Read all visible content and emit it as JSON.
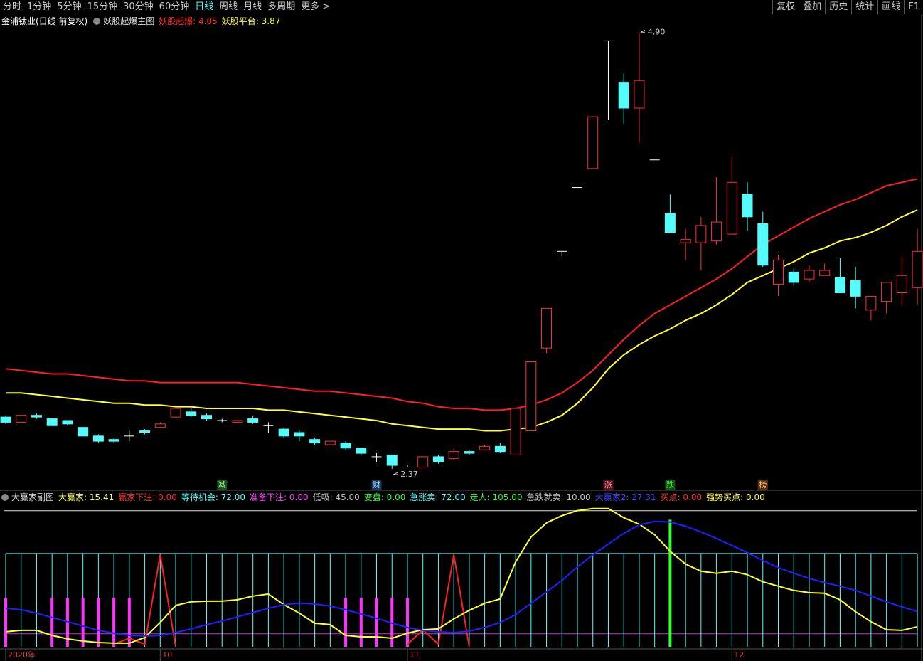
{
  "toolbar": {
    "periods": [
      "分时",
      "1分钟",
      "5分钟",
      "15分钟",
      "30分钟",
      "60分钟",
      "日线",
      "周线",
      "月线",
      "多周期",
      "更多 >"
    ],
    "active": "日线",
    "tools": [
      "复权",
      "叠加",
      "历史",
      "统计",
      "画线",
      "F1"
    ]
  },
  "chart_data": [
    {
      "type": "candlestick",
      "title": "金浦钛业(日线 前复权)",
      "subtitle": "妖股起爆主图",
      "legend": [
        {
          "text": "妖股起爆: 4.05",
          "color": "#ff2a2a"
        },
        {
          "text": "妖股平台: 3.87",
          "color": "#ffff33"
        }
      ],
      "ylim": [
        2.25,
        4.93
      ],
      "up_color": "#ff3232",
      "down_color": "#54fcfc",
      "open": [
        2.67,
        2.64,
        2.68,
        2.66,
        2.65,
        2.61,
        2.56,
        2.54,
        2.56,
        2.59,
        2.61,
        2.67,
        2.7,
        2.68,
        2.65,
        2.64,
        2.66,
        2.62,
        2.6,
        2.58,
        2.54,
        2.51,
        2.52,
        2.49,
        2.44,
        2.45,
        2.38,
        2.38,
        2.44,
        2.43,
        2.47,
        2.48,
        2.5,
        2.45,
        2.59,
        3.07,
        3.63,
        4.0,
        4.11,
        4.85,
        4.61,
        4.46,
        4.16,
        3.85,
        3.68,
        3.68,
        3.69,
        3.73,
        3.96,
        3.79,
        3.44,
        3.51,
        3.47,
        3.49,
        3.48,
        3.46,
        3.29,
        3.34,
        3.39,
        3.42
      ],
      "high": [
        2.68,
        2.68,
        2.69,
        2.66,
        2.65,
        2.61,
        2.57,
        2.55,
        2.59,
        2.6,
        2.64,
        2.72,
        2.72,
        2.69,
        2.66,
        2.65,
        2.68,
        2.64,
        2.61,
        2.59,
        2.55,
        2.53,
        2.53,
        2.49,
        2.46,
        2.45,
        2.39,
        2.44,
        2.45,
        2.49,
        2.48,
        2.51,
        2.52,
        2.72,
        2.99,
        3.3,
        3.63,
        4.0,
        4.41,
        4.85,
        4.66,
        4.9,
        4.16,
        3.96,
        3.76,
        3.83,
        4.06,
        4.18,
        4.03,
        3.86,
        3.61,
        3.53,
        3.55,
        3.56,
        3.59,
        3.54,
        3.37,
        3.45,
        3.6,
        3.76
      ],
      "low": [
        2.63,
        2.64,
        2.66,
        2.62,
        2.62,
        2.56,
        2.52,
        2.52,
        2.53,
        2.57,
        2.61,
        2.67,
        2.67,
        2.65,
        2.64,
        2.64,
        2.63,
        2.58,
        2.55,
        2.53,
        2.51,
        2.51,
        2.48,
        2.45,
        2.41,
        2.37,
        2.38,
        2.38,
        2.4,
        2.42,
        2.45,
        2.48,
        2.46,
        2.45,
        2.59,
        3.04,
        3.6,
        4.0,
        4.11,
        4.39,
        4.37,
        4.26,
        4.16,
        3.74,
        3.58,
        3.52,
        3.67,
        3.73,
        3.75,
        3.54,
        3.37,
        3.43,
        3.45,
        3.49,
        3.39,
        3.3,
        3.23,
        3.27,
        3.32,
        3.32
      ],
      "close": [
        2.64,
        2.68,
        2.67,
        2.62,
        2.63,
        2.56,
        2.53,
        2.53,
        2.56,
        2.58,
        2.63,
        2.72,
        2.68,
        2.66,
        2.65,
        2.65,
        2.64,
        2.62,
        2.56,
        2.56,
        2.52,
        2.53,
        2.49,
        2.46,
        2.44,
        2.39,
        2.38,
        2.44,
        2.41,
        2.47,
        2.46,
        2.5,
        2.47,
        2.72,
        2.99,
        3.3,
        3.63,
        4.0,
        4.41,
        4.85,
        4.46,
        4.62,
        4.16,
        3.74,
        3.7,
        3.78,
        3.8,
        4.03,
        3.83,
        3.55,
        3.58,
        3.45,
        3.52,
        3.52,
        3.39,
        3.37,
        3.37,
        3.45,
        3.49,
        3.63
      ],
      "series": [
        {
          "color": "#ff2020",
          "values": [
            2.95,
            2.94,
            2.93,
            2.92,
            2.92,
            2.91,
            2.9,
            2.89,
            2.88,
            2.88,
            2.87,
            2.87,
            2.87,
            2.87,
            2.87,
            2.87,
            2.86,
            2.85,
            2.84,
            2.83,
            2.82,
            2.82,
            2.81,
            2.8,
            2.79,
            2.78,
            2.76,
            2.75,
            2.73,
            2.72,
            2.72,
            2.71,
            2.71,
            2.72,
            2.74,
            2.77,
            2.81,
            2.87,
            2.94,
            3.03,
            3.12,
            3.2,
            3.27,
            3.32,
            3.37,
            3.42,
            3.47,
            3.53,
            3.6,
            3.67,
            3.72,
            3.77,
            3.82,
            3.86,
            3.9,
            3.93,
            3.97,
            4.01,
            4.03,
            4.05
          ]
        },
        {
          "color": "#ffff33",
          "values": [
            2.81,
            2.81,
            2.8,
            2.79,
            2.78,
            2.77,
            2.76,
            2.75,
            2.75,
            2.74,
            2.74,
            2.73,
            2.73,
            2.72,
            2.72,
            2.72,
            2.72,
            2.71,
            2.71,
            2.7,
            2.69,
            2.68,
            2.67,
            2.66,
            2.65,
            2.63,
            2.62,
            2.61,
            2.6,
            2.6,
            2.6,
            2.59,
            2.59,
            2.6,
            2.61,
            2.64,
            2.68,
            2.75,
            2.84,
            2.95,
            3.03,
            3.09,
            3.14,
            3.18,
            3.23,
            3.27,
            3.32,
            3.38,
            3.45,
            3.49,
            3.53,
            3.57,
            3.62,
            3.65,
            3.69,
            3.71,
            3.74,
            3.78,
            3.83,
            3.87
          ]
        }
      ],
      "annotations": [
        {
          "value": 4.9,
          "label": "4.90"
        },
        {
          "value": 2.37,
          "label": "2.37"
        }
      ],
      "signals": [
        null,
        null,
        null,
        null,
        null,
        null,
        null,
        null,
        null,
        null,
        null,
        null,
        null,
        null,
        "减",
        null,
        null,
        null,
        null,
        null,
        null,
        null,
        null,
        null,
        "财",
        null,
        null,
        null,
        null,
        null,
        null,
        null,
        null,
        null,
        null,
        null,
        null,
        null,
        null,
        "涨",
        null,
        null,
        null,
        "跌",
        null,
        null,
        null,
        null,
        null,
        "榜",
        null,
        null,
        null,
        null,
        null,
        null,
        null,
        null,
        null,
        null
      ]
    },
    {
      "type": "indicator",
      "title": "大赢家副图",
      "legend": [
        {
          "text": "大赢家: 15.41",
          "color": "#ffff66"
        },
        {
          "text": "赢家下注: 0.00",
          "color": "#ff3232"
        },
        {
          "text": "等待机会: 72.00",
          "color": "#54fcfc"
        },
        {
          "text": "准备下注: 0.00",
          "color": "#ff44ff"
        },
        {
          "text": "低吸: 45.00",
          "color": "#c0c0c0"
        },
        {
          "text": "变盘: 0.00",
          "color": "#33ff33"
        },
        {
          "text": "急涨卖: 72.00",
          "color": "#54fcfc"
        },
        {
          "text": "走人: 105.00",
          "color": "#33ff33"
        },
        {
          "text": "急跌就卖: 10.00",
          "color": "#c0c0c0"
        },
        {
          "text": "大赢家2: 27.31",
          "color": "#4040ff"
        },
        {
          "text": "买点: 0.00",
          "color": "#ff3232"
        },
        {
          "text": "强势买点: 0.00",
          "color": "#ffff33"
        }
      ],
      "ylim": [
        0,
        112
      ],
      "categories": [
        "2020年",
        null,
        null,
        null,
        null,
        null,
        null,
        null,
        null,
        null,
        "10",
        null,
        null,
        null,
        null,
        null,
        null,
        null,
        null,
        null,
        null,
        null,
        null,
        null,
        null,
        null,
        "11",
        null,
        null,
        null,
        null,
        null,
        null,
        null,
        null,
        null,
        null,
        null,
        null,
        null,
        null,
        null,
        null,
        null,
        null,
        null,
        null,
        "12",
        null,
        null,
        null,
        null,
        null,
        null,
        null,
        null,
        null,
        null,
        null,
        null
      ],
      "hlines": [
        {
          "value": 105,
          "color": "#e0e0e0"
        },
        {
          "value": 10,
          "color": "#cc33cc"
        }
      ],
      "series": [
        {
          "kind": "stick",
          "color": "#54fcfc",
          "values": [
            72,
            72,
            72,
            72,
            72,
            72,
            72,
            72,
            72,
            72,
            72,
            72,
            72,
            72,
            72,
            72,
            72,
            72,
            72,
            72,
            72,
            72,
            72,
            72,
            72,
            72,
            72,
            72,
            72,
            72,
            72,
            72,
            72,
            72,
            72,
            72,
            72,
            72,
            72,
            72,
            72,
            72,
            72,
            72,
            72,
            72,
            72,
            72,
            72,
            72,
            72,
            72,
            72,
            72,
            72,
            72,
            72,
            72,
            72,
            72
          ]
        },
        {
          "kind": "bar",
          "color": "#ff33ff",
          "values": [
            38,
            0,
            0,
            38,
            38,
            38,
            38,
            38,
            38,
            0,
            0,
            0,
            0,
            0,
            0,
            0,
            0,
            0,
            0,
            0,
            0,
            0,
            38,
            38,
            38,
            38,
            38,
            0,
            0,
            0,
            0,
            0,
            0,
            0,
            0,
            0,
            0,
            0,
            0,
            0,
            0,
            0,
            0,
            0,
            0,
            0,
            0,
            0,
            0,
            0,
            0,
            0,
            0,
            0,
            0,
            0,
            0,
            0,
            0,
            0
          ]
        },
        {
          "kind": "bar",
          "color": "#33ff33",
          "values": [
            0,
            0,
            0,
            0,
            0,
            0,
            0,
            0,
            0,
            0,
            0,
            0,
            0,
            0,
            0,
            0,
            0,
            0,
            0,
            0,
            0,
            0,
            0,
            0,
            0,
            0,
            0,
            0,
            0,
            0,
            0,
            0,
            0,
            0,
            0,
            0,
            0,
            0,
            0,
            0,
            0,
            0,
            0,
            98,
            0,
            0,
            0,
            0,
            0,
            0,
            0,
            0,
            0,
            0,
            0,
            0,
            0,
            0,
            0,
            0
          ]
        },
        {
          "kind": "line",
          "color": "#ff2020",
          "values": [
            null,
            null,
            null,
            null,
            null,
            null,
            null,
            2,
            6.6,
            2,
            71,
            0,
            null,
            null,
            null,
            null,
            null,
            null,
            null,
            null,
            null,
            null,
            null,
            null,
            null,
            null,
            2,
            13,
            2,
            71,
            0,
            null,
            null,
            null,
            null,
            null,
            null,
            null,
            null,
            null,
            null,
            null,
            null,
            null,
            null,
            null,
            null,
            null,
            null,
            null,
            null,
            null,
            null,
            null,
            null,
            null,
            null,
            null,
            null,
            null
          ]
        },
        {
          "kind": "line",
          "color": "#ffff33",
          "values": [
            11.6,
            12.7,
            12.7,
            8.8,
            6.1,
            4.4,
            3.3,
            2.8,
            2.8,
            7.2,
            18.7,
            31.9,
            34.7,
            35.2,
            35.2,
            36.3,
            39.1,
            40.7,
            32.5,
            25.9,
            18.2,
            17.1,
            8.8,
            7.7,
            7.7,
            6.6,
            10.5,
            13.2,
            13.8,
            21.5,
            28.1,
            33.6,
            36.9,
            65.5,
            84.7,
            95.7,
            101.2,
            105.1,
            106.7,
            106.7,
            99.6,
            94.6,
            86.4,
            73.7,
            63.8,
            58.3,
            56.7,
            58.3,
            55.6,
            50.1,
            46.8,
            43.5,
            41.8,
            41.3,
            36.3,
            27,
            19.3,
            13.2,
            12.7,
            15.41
          ]
        },
        {
          "kind": "line",
          "color": "#2020ff",
          "values": [
            29.7,
            28.6,
            25.9,
            22.6,
            19.3,
            16.0,
            12.7,
            10.5,
            8.8,
            8.3,
            8.8,
            11.0,
            13.8,
            17.1,
            19.8,
            23.1,
            26.4,
            29.7,
            32.5,
            33.6,
            33.0,
            31.4,
            28.6,
            25.3,
            22.0,
            18.2,
            14.9,
            12.7,
            11.6,
            11.0,
            12.1,
            14.9,
            18.7,
            24.8,
            33.6,
            42.4,
            51.2,
            61.6,
            71.0,
            79.2,
            87.5,
            94.1,
            96.8,
            96.3,
            93.0,
            88.6,
            83.6,
            78.1,
            72.6,
            66.6,
            61.1,
            56.7,
            52.8,
            49.5,
            46.8,
            43.5,
            39.1,
            34.7,
            30.8,
            27.31
          ]
        }
      ]
    }
  ]
}
